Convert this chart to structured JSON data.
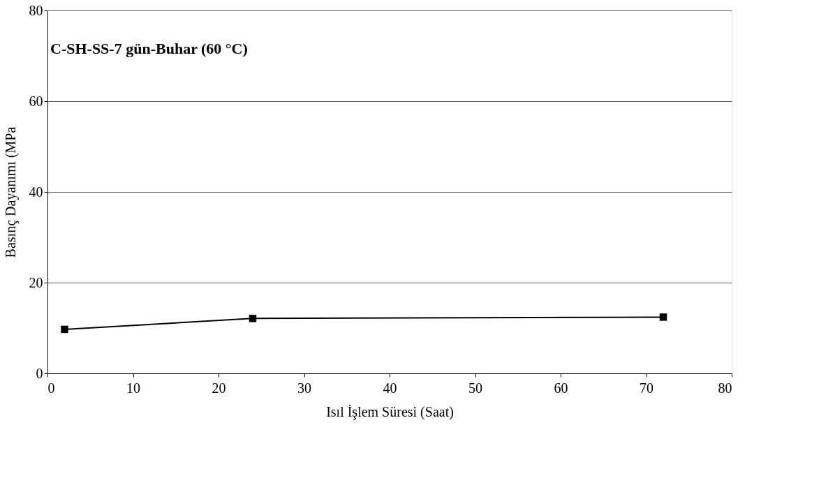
{
  "chart_data": {
    "type": "line",
    "xlabel": "Isıl İşlem Süresi (Saat)",
    "ylabel": "Basınç Dayanımı (MPa",
    "annotations": [
      "C-SH-SS-7 gün-Buhar (60 °C)"
    ],
    "x": [
      2,
      24,
      72
    ],
    "series": [
      {
        "color": "#000000",
        "values": [
          9.7,
          12.1,
          12.4
        ]
      }
    ],
    "xlim": [
      0,
      80
    ],
    "xticks": [
      0,
      10,
      20,
      30,
      40,
      50,
      60,
      70,
      80
    ],
    "ylim": [
      0,
      80
    ],
    "yticks": [
      0,
      20,
      40,
      60,
      80
    ],
    "grid": "y",
    "marker": "square",
    "line_style": "solid",
    "legend": false
  }
}
